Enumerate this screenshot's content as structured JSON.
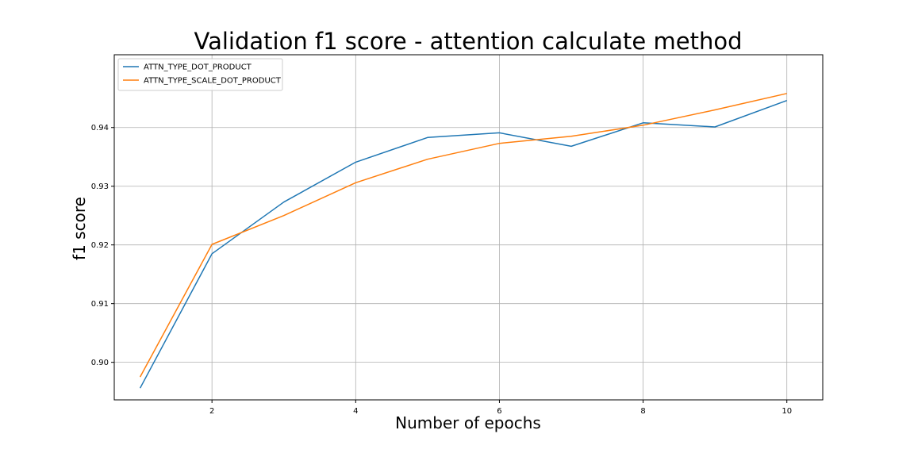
{
  "chart_data": {
    "type": "line",
    "title": "Validation f1 score - attention calculate method",
    "xlabel": "Number of epochs",
    "ylabel": "f1 score",
    "xlim": [
      0.64,
      10.5
    ],
    "ylim": [
      0.8936,
      0.9524
    ],
    "xticks": [
      2,
      4,
      6,
      8,
      10
    ],
    "xtick_labels": [
      "2",
      "4",
      "6",
      "8",
      "10"
    ],
    "yticks": [
      0.9,
      0.91,
      0.92,
      0.93,
      0.94
    ],
    "ytick_labels": [
      "0.90",
      "0.91",
      "0.92",
      "0.93",
      "0.94"
    ],
    "grid": true,
    "legend_position": "top-left",
    "x": [
      1,
      2,
      3,
      4,
      5,
      6,
      7,
      8,
      9,
      10
    ],
    "series": [
      {
        "name": "ATTN_TYPE_DOT_PRODUCT",
        "color": "#1f77b4",
        "values": [
          0.8956,
          0.9185,
          0.9273,
          0.9341,
          0.9383,
          0.9391,
          0.9368,
          0.9408,
          0.9401,
          0.9446
        ]
      },
      {
        "name": "ATTN_TYPE_SCALE_DOT_PRODUCT",
        "color": "#ff7f0e",
        "values": [
          0.8975,
          0.9201,
          0.925,
          0.9306,
          0.9346,
          0.9373,
          0.9385,
          0.9404,
          0.943,
          0.9458
        ]
      }
    ]
  }
}
